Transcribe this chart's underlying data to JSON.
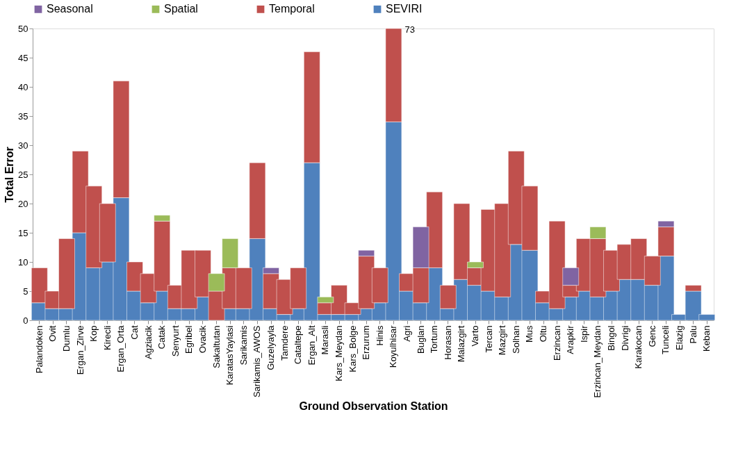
{
  "chart_data": {
    "type": "bar",
    "stacked": true,
    "xlabel": "Ground Observation Station",
    "ylabel": "Total Error",
    "categories": [
      "Palandoken",
      "Ovit",
      "Dumlu",
      "Ergan_Zirve",
      "Kop",
      "Kirecli",
      "Ergan_Orta",
      "Cat",
      "Agziacik",
      "Catak",
      "Senyurt",
      "Egribel",
      "Ovacik",
      "Sakaltutan",
      "KaratasYaylasi",
      "Sarikamis",
      "Sarikamis_AWOS",
      "Guzelyayla",
      "Tamdere",
      "Cataltepe",
      "Ergan_Alt",
      "Marasli",
      "Kars_Meydan",
      "Kars_Bolge",
      "Erzurum",
      "Hinis",
      "Koyulhisar",
      "Agri",
      "Buglan",
      "Tortum",
      "Horasan",
      "Malazgirt",
      "Varto",
      "Tercan",
      "Mazgirt",
      "Solhan",
      "Mus",
      "Oltu",
      "Erzincan",
      "Arapkir",
      "Ispir",
      "Erzincan_Meydan",
      "Bingol",
      "Divrigi",
      "Karakocan",
      "Genc",
      "Tunceli",
      "Elazig",
      "Palu",
      "Keban"
    ],
    "series": [
      {
        "name": "SEVIRI",
        "color": "#4f81bd",
        "values": [
          3,
          2,
          2,
          15,
          9,
          10,
          21,
          5,
          3,
          5,
          2,
          2,
          4,
          0,
          2,
          2,
          14,
          2,
          1,
          2,
          27,
          1,
          1,
          1,
          2,
          3,
          34,
          5,
          3,
          9,
          2,
          7,
          6,
          5,
          4,
          13,
          12,
          3,
          2,
          4,
          5,
          4,
          5,
          7,
          7,
          6,
          11,
          1,
          5,
          1
        ]
      },
      {
        "name": "Temporal",
        "color": "#c0504d",
        "values": [
          6,
          3,
          12,
          14,
          14,
          10,
          20,
          5,
          5,
          12,
          4,
          10,
          8,
          5,
          7,
          7,
          13,
          6,
          6,
          7,
          19,
          2,
          5,
          2,
          9,
          6,
          16,
          3,
          6,
          13,
          4,
          13,
          3,
          14,
          16,
          16,
          11,
          2,
          15,
          2,
          9,
          10,
          7,
          6,
          7,
          5,
          5,
          null,
          1,
          null
        ]
      },
      {
        "name": "Spatial",
        "color": "#9bbb59",
        "values": [
          null,
          null,
          null,
          null,
          null,
          null,
          null,
          null,
          null,
          1,
          null,
          null,
          null,
          3,
          5,
          null,
          null,
          null,
          null,
          null,
          null,
          1,
          null,
          null,
          null,
          null,
          null,
          null,
          null,
          null,
          null,
          null,
          1,
          null,
          null,
          null,
          null,
          null,
          null,
          null,
          null,
          2,
          null,
          null,
          null,
          null,
          null,
          null,
          null,
          null
        ]
      },
      {
        "name": "Seasonal",
        "color": "#8064a2",
        "values": [
          null,
          null,
          null,
          null,
          null,
          null,
          null,
          null,
          null,
          null,
          null,
          null,
          null,
          null,
          null,
          null,
          null,
          1,
          null,
          null,
          null,
          null,
          null,
          null,
          1,
          null,
          null,
          null,
          7,
          null,
          null,
          null,
          null,
          null,
          null,
          null,
          null,
          null,
          null,
          3,
          null,
          null,
          null,
          null,
          null,
          null,
          1,
          null,
          null,
          null
        ]
      }
    ],
    "ylim": [
      0,
      50
    ],
    "yticks": [
      0,
      5,
      10,
      15,
      20,
      25,
      30,
      35,
      40,
      45,
      50
    ],
    "annotations": [
      {
        "text": "73",
        "x": "Koyulhisar",
        "y": 50
      }
    ],
    "legend": "top",
    "grid": false
  }
}
